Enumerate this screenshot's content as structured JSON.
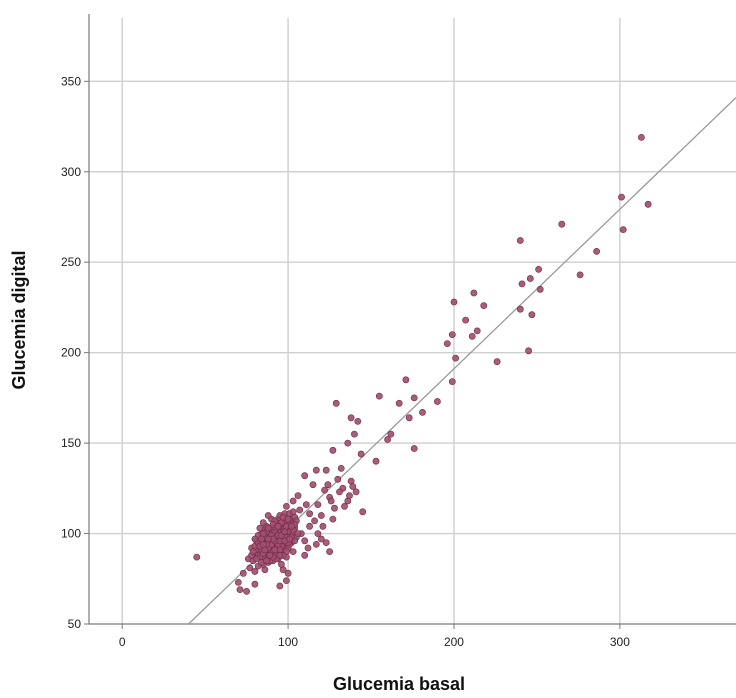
{
  "chart_data": {
    "type": "scatter",
    "title": "",
    "xlabel": "Glucemia basal",
    "ylabel": "Glucemia digital",
    "xlim": [
      -20,
      370
    ],
    "ylim": [
      50,
      385
    ],
    "x_ticks": [
      0,
      100,
      200,
      300
    ],
    "y_ticks": [
      50,
      100,
      150,
      200,
      250,
      300,
      350
    ],
    "x_tick_labels": [
      "0",
      "100",
      "200",
      "300"
    ],
    "y_tick_labels": [
      "50",
      "100",
      "150",
      "200",
      "250",
      "300",
      "350"
    ],
    "grid": true,
    "legend": "none",
    "colors": {
      "point_fill": "#a14f6e",
      "point_stroke": "#6e2a45",
      "fit_line": "#9a9a9a",
      "grid": "#cfcfcf",
      "axis": "#7a7a7a"
    },
    "fit_line": {
      "x": [
        40,
        370
      ],
      "y": [
        50,
        341
      ]
    },
    "series": [
      {
        "points": [
          [
            313,
            319
          ],
          [
            301,
            286
          ],
          [
            317,
            282
          ],
          [
            302,
            268
          ],
          [
            265,
            271
          ],
          [
            286,
            256
          ],
          [
            240,
            262
          ],
          [
            251,
            246
          ],
          [
            246,
            241
          ],
          [
            241,
            238
          ],
          [
            276,
            243
          ],
          [
            252,
            235
          ],
          [
            200,
            228
          ],
          [
            218,
            226
          ],
          [
            212,
            233
          ],
          [
            207,
            218
          ],
          [
            214,
            212
          ],
          [
            211,
            209
          ],
          [
            199,
            210
          ],
          [
            196,
            205
          ],
          [
            201,
            197
          ],
          [
            226,
            195
          ],
          [
            245,
            201
          ],
          [
            247,
            221
          ],
          [
            240,
            224
          ],
          [
            199,
            184
          ],
          [
            171,
            185
          ],
          [
            176,
            175
          ],
          [
            167,
            172
          ],
          [
            181,
            167
          ],
          [
            155,
            176
          ],
          [
            190,
            173
          ],
          [
            173,
            164
          ],
          [
            160,
            152
          ],
          [
            176,
            147
          ],
          [
            162,
            155
          ],
          [
            142,
            162
          ],
          [
            138,
            164
          ],
          [
            140,
            155
          ],
          [
            136,
            150
          ],
          [
            144,
            144
          ],
          [
            129,
            172
          ],
          [
            153,
            140
          ],
          [
            127,
            146
          ],
          [
            117,
            135
          ],
          [
            110,
            132
          ],
          [
            145,
            112
          ],
          [
            133,
            125
          ],
          [
            138,
            129
          ],
          [
            132,
            136
          ],
          [
            125,
            120
          ],
          [
            136,
            118
          ],
          [
            141,
            123
          ],
          [
            128,
            114
          ],
          [
            122,
            124
          ],
          [
            115,
            127
          ],
          [
            126,
            118
          ],
          [
            131,
            123
          ],
          [
            120,
            110
          ],
          [
            130,
            130
          ],
          [
            137,
            121
          ],
          [
            124,
            127
          ],
          [
            134,
            115
          ],
          [
            118,
            116
          ],
          [
            123,
            135
          ],
          [
            139,
            126
          ],
          [
            127,
            108
          ],
          [
            45,
            87
          ],
          [
            75,
            68
          ],
          [
            71,
            69
          ],
          [
            80,
            72
          ],
          [
            73,
            78
          ],
          [
            100,
            78
          ],
          [
            95,
            71
          ],
          [
            99,
            74
          ],
          [
            77,
            81
          ],
          [
            97,
            80
          ],
          [
            70,
            73
          ],
          [
            112,
            92
          ],
          [
            118,
            100
          ],
          [
            113,
            104
          ],
          [
            120,
            97
          ],
          [
            110,
            88
          ],
          [
            116,
            107
          ],
          [
            123,
            95
          ],
          [
            108,
            100
          ],
          [
            121,
            104
          ],
          [
            117,
            94
          ],
          [
            110,
            96
          ],
          [
            125,
            90
          ],
          [
            113,
            111
          ],
          [
            111,
            116
          ],
          [
            106,
            121
          ],
          [
            103,
            118
          ],
          [
            107,
            113
          ],
          [
            88,
            84
          ],
          [
            98,
            111
          ],
          [
            104,
            109
          ],
          [
            92,
            98
          ],
          [
            94,
            90
          ],
          [
            102,
            106
          ],
          [
            85,
            92
          ],
          [
            89,
            103
          ],
          [
            96,
            88
          ],
          [
            101,
            102
          ],
          [
            93,
            95
          ],
          [
            87,
            97
          ],
          [
            99,
            115
          ],
          [
            80,
            88
          ],
          [
            83,
            94
          ],
          [
            105,
            98
          ],
          [
            86,
            80
          ],
          [
            91,
            85
          ],
          [
            97,
            100
          ],
          [
            84,
            100
          ],
          [
            90,
            108
          ],
          [
            95,
            93
          ],
          [
            82,
            82
          ],
          [
            100,
            97
          ],
          [
            78,
            92
          ],
          [
            103,
            90
          ],
          [
            88,
            110
          ],
          [
            92,
            104
          ],
          [
            98,
            92
          ],
          [
            81,
            96
          ],
          [
            86,
            89
          ],
          [
            94,
            108
          ],
          [
            102,
            95
          ],
          [
            76,
            86
          ],
          [
            99,
            87
          ],
          [
            89,
            91
          ],
          [
            85,
            97
          ],
          [
            91,
            101
          ],
          [
            96,
            83
          ],
          [
            93,
            106
          ],
          [
            80,
            79
          ],
          [
            87,
            104
          ],
          [
            101,
            111
          ],
          [
            83,
            90
          ],
          [
            97,
            96
          ],
          [
            104,
            103
          ],
          [
            88,
            86
          ],
          [
            92,
            93
          ],
          [
            79,
            85
          ],
          [
            106,
            100
          ],
          [
            95,
            110
          ],
          [
            84,
            95
          ],
          [
            98,
            98
          ],
          [
            90,
            88
          ],
          [
            86,
            102
          ],
          [
            100,
            92
          ],
          [
            82,
            88
          ],
          [
            93,
            99
          ],
          [
            89,
            96
          ],
          [
            97,
            105
          ],
          [
            85,
            83
          ],
          [
            102,
            100
          ],
          [
            91,
            95
          ],
          [
            87,
            91
          ],
          [
            96,
            102
          ],
          [
            94,
            86
          ],
          [
            99,
            95
          ],
          [
            81,
            91
          ],
          [
            105,
            107
          ],
          [
            88,
            99
          ],
          [
            92,
            89
          ],
          [
            83,
            103
          ],
          [
            100,
            105
          ],
          [
            78,
            88
          ],
          [
            95,
            99
          ],
          [
            86,
            94
          ],
          [
            90,
            103
          ],
          [
            103,
            112
          ],
          [
            84,
            87
          ],
          [
            98,
            107
          ],
          [
            93,
            92
          ],
          [
            89,
            85
          ],
          [
            96,
            97
          ],
          [
            80,
            93
          ],
          [
            101,
            94
          ],
          [
            87,
            88
          ],
          [
            94,
            101
          ],
          [
            91,
            90
          ],
          [
            85,
            106
          ],
          [
            99,
            101
          ],
          [
            82,
            95
          ],
          [
            97,
            91
          ],
          [
            92,
            107
          ],
          [
            88,
            95
          ],
          [
            104,
            96
          ],
          [
            84,
            91
          ],
          [
            95,
            104
          ],
          [
            90,
            97
          ],
          [
            86,
            86
          ],
          [
            100,
            101
          ],
          [
            93,
            86
          ],
          [
            79,
            90
          ],
          [
            98,
            103
          ],
          [
            89,
            100
          ],
          [
            96,
            93
          ],
          [
            83,
            87
          ],
          [
            101,
            108
          ],
          [
            87,
            101
          ],
          [
            94,
            94
          ],
          [
            91,
            105
          ],
          [
            85,
            89
          ],
          [
            102,
            98
          ],
          [
            99,
            90
          ],
          [
            82,
            99
          ],
          [
            95,
            96
          ],
          [
            88,
            92
          ],
          [
            92,
            101
          ],
          [
            97,
            88
          ],
          [
            90,
            94
          ],
          [
            86,
            98
          ],
          [
            103,
            102
          ],
          [
            84,
            84
          ],
          [
            96,
            106
          ],
          [
            93,
            89
          ],
          [
            89,
            97
          ],
          [
            100,
            95
          ],
          [
            81,
            86
          ],
          [
            98,
            96
          ],
          [
            87,
            94
          ],
          [
            94,
            99
          ],
          [
            91,
            87
          ],
          [
            85,
            100
          ],
          [
            104,
            105
          ],
          [
            99,
            104
          ],
          [
            83,
            93
          ],
          [
            95,
            91
          ],
          [
            90,
            99
          ],
          [
            88,
            103
          ],
          [
            92,
            96
          ],
          [
            97,
            109
          ],
          [
            86,
            91
          ],
          [
            102,
            104
          ],
          [
            84,
            97
          ],
          [
            93,
            103
          ],
          [
            89,
            88
          ],
          [
            96,
            99
          ],
          [
            101,
            97
          ],
          [
            87,
            85
          ],
          [
            94,
            104
          ],
          [
            91,
            97
          ],
          [
            80,
            97
          ],
          [
            98,
            101
          ],
          [
            85,
            94
          ],
          [
            92,
            91
          ],
          [
            100,
            108
          ],
          [
            88,
            97
          ],
          [
            95,
            88
          ]
        ]
      }
    ]
  }
}
